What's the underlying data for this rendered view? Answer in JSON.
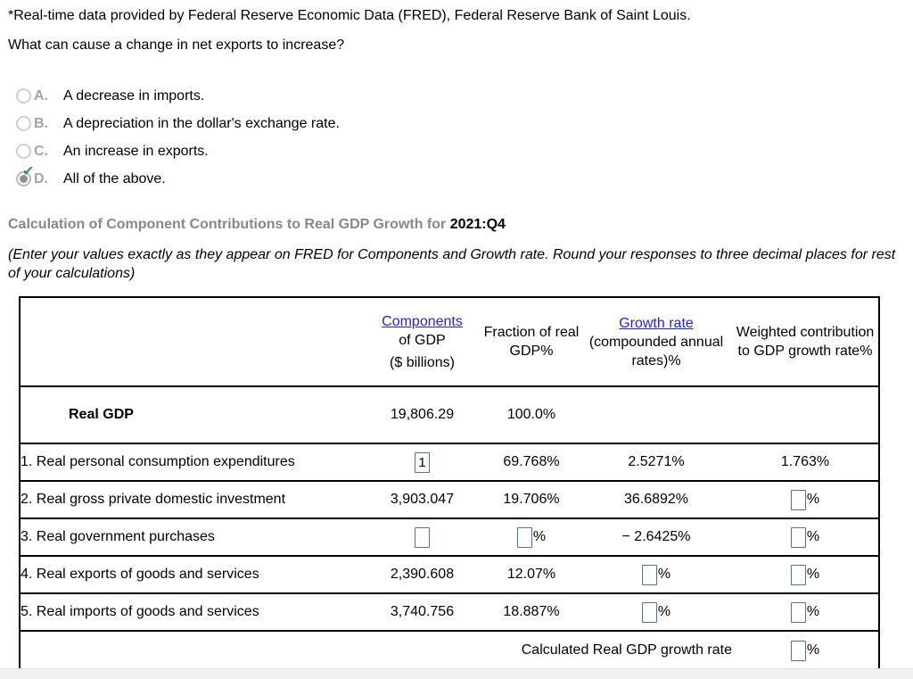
{
  "page": {
    "source_note": "*Real-time data provided by Federal Reserve Economic Data (FRED), Federal Reserve Bank of Saint Louis.",
    "question": "What can cause a change in net exports to increase?"
  },
  "options": [
    {
      "letter": "A.",
      "text": "A decrease in imports.",
      "selected": false
    },
    {
      "letter": "B.",
      "text": "A depreciation in the dollar's exchange rate.",
      "selected": false
    },
    {
      "letter": "C.",
      "text": "An increase in exports.",
      "selected": false
    },
    {
      "letter": "D.",
      "text": "All of the above.",
      "selected": true
    }
  ],
  "icons": {
    "selected_check": "✔"
  },
  "calc": {
    "heading_prefix": "Calculation of Component Contributions to Real GDP Growth for ",
    "heading_period": "2021:Q4",
    "instructions": "(Enter your values exactly as they appear on FRED for Components and Growth rate. Round your responses to three decimal places for rest of your calculations)"
  },
  "table": {
    "headers": {
      "col2_link": "Components",
      "col2_line2": "of GDP",
      "col2_line3": "($ billions)",
      "col3_line1": "Fraction of real",
      "col3_line2": "GDP%",
      "col4_link": "Growth rate",
      "col4_line2": "(compounded annual",
      "col4_line3": "rates)%",
      "col5_line1": "Weighted contribution",
      "col5_line2": "to GDP growth rate%"
    },
    "rows": [
      {
        "label": "Real GDP",
        "cells": [
          {
            "text": "19,806.29"
          },
          {
            "text": "100.0%"
          },
          {},
          {}
        ]
      },
      {
        "label": "1. Real personal consumption expenditures",
        "cells": [
          {
            "input": "1"
          },
          {
            "text": "69.768%"
          },
          {
            "text": "2.5271%"
          },
          {
            "text": "1.763%"
          }
        ]
      },
      {
        "label": "2. Real gross private domestic investment",
        "cells": [
          {
            "text": "3,903.047"
          },
          {
            "text": "19.706%"
          },
          {
            "text": "36.6892%"
          },
          {
            "input": "",
            "suffix": "%"
          }
        ]
      },
      {
        "label": "3. Real government purchases",
        "cells": [
          {
            "input": ""
          },
          {
            "input": "",
            "suffix": "%"
          },
          {
            "text": "− 2.6425%"
          },
          {
            "input": "",
            "suffix": "%"
          }
        ]
      },
      {
        "label": "4. Real exports of goods and services",
        "cells": [
          {
            "text": "2,390.608"
          },
          {
            "text": "12.07%"
          },
          {
            "input": "",
            "suffix": "%"
          },
          {
            "input": "",
            "suffix": "%"
          }
        ]
      },
      {
        "label": "5. Real imports of goods and services",
        "cells": [
          {
            "text": "3,740.756"
          },
          {
            "text": "18.887%"
          },
          {
            "input": "",
            "suffix": "%"
          },
          {
            "input": "",
            "suffix": "%"
          }
        ]
      }
    ],
    "footer_label": "Calculated Real GDP growth rate",
    "footer_suffix": "%"
  },
  "colors": {
    "link_blue": "#2222ee",
    "input_border_blue": "#4472c4",
    "check_green": "#3e9b40",
    "heading_gray": "#888888",
    "option_letter_gray": "#a3a3a3",
    "bottom_bar_gray": "#f1f1f1"
  }
}
